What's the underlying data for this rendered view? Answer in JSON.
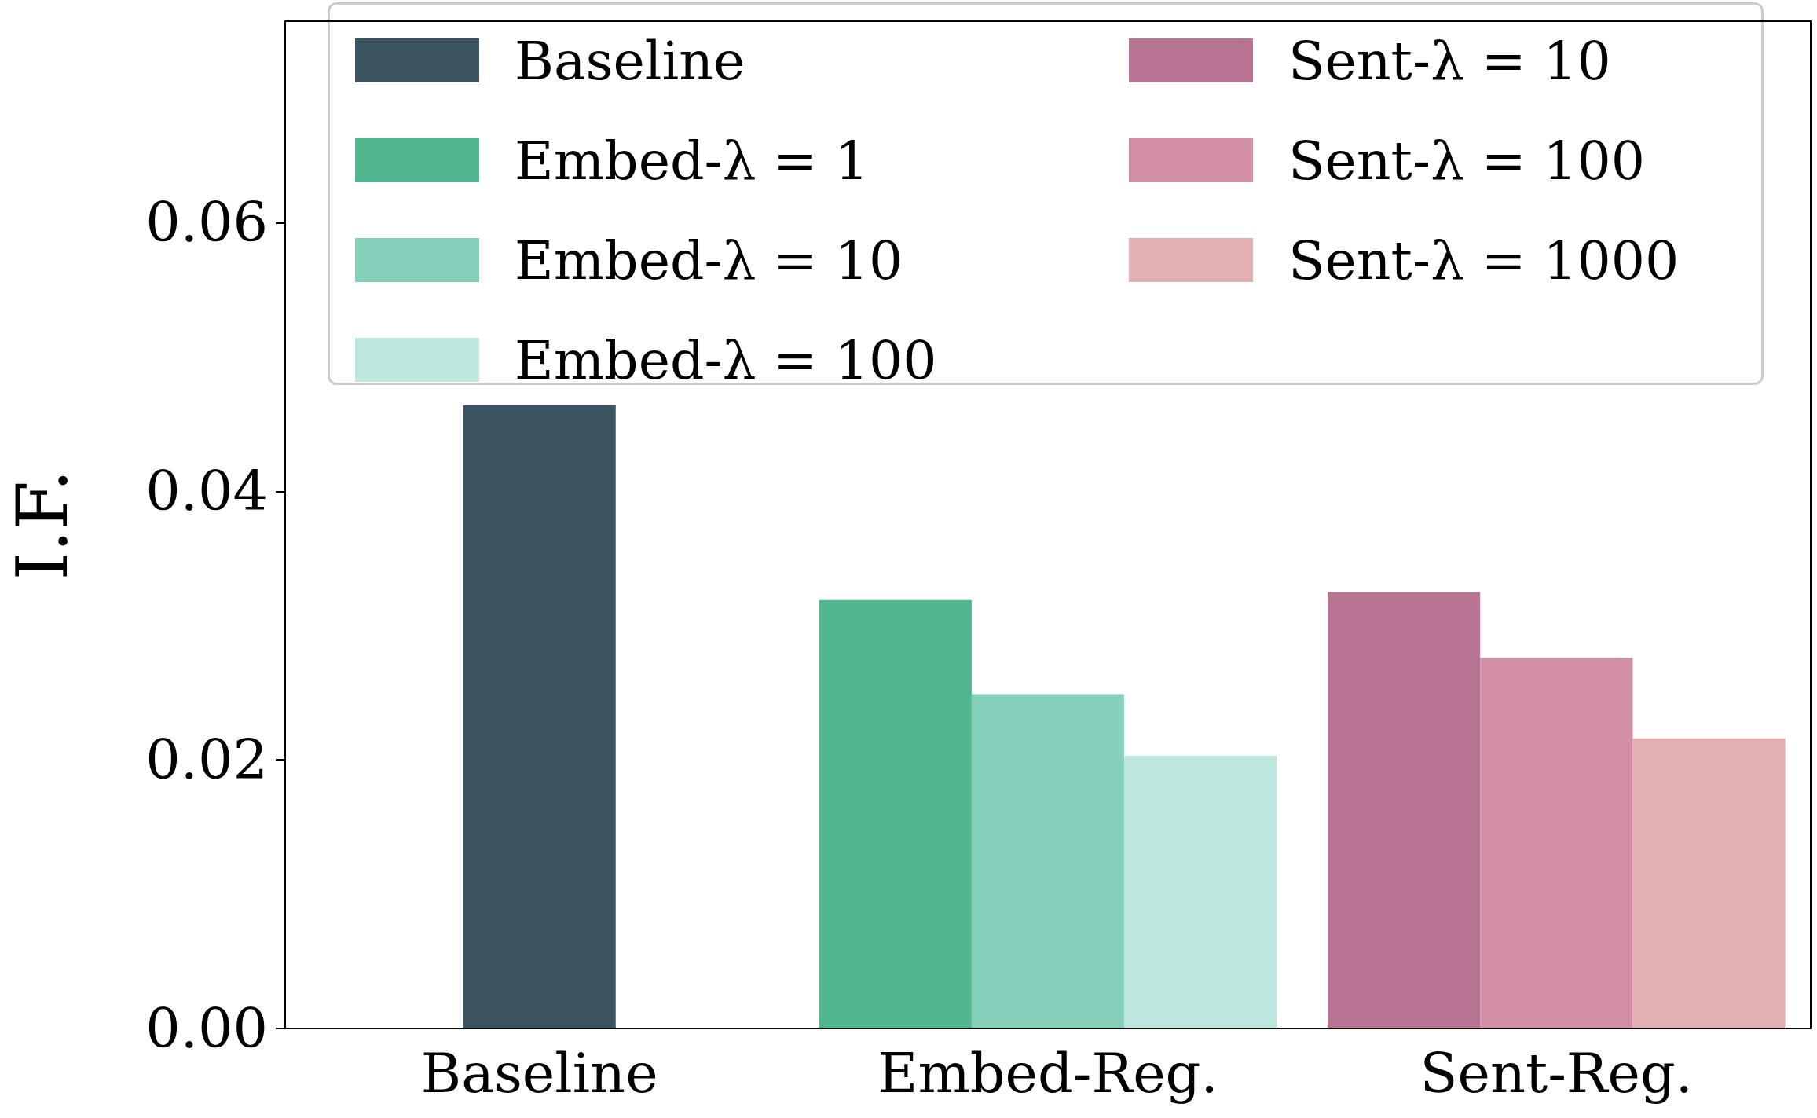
{
  "chart_data": {
    "type": "bar",
    "ylabel": "I.F.",
    "categories": [
      "Baseline",
      "Embed-Reg.",
      "Sent-Reg."
    ],
    "series": [
      {
        "name": "Baseline",
        "color": "#3a5561",
        "values": [
          0.0464,
          null,
          null
        ]
      },
      {
        "name": "Embed-λ = 1",
        "color": "#52b78e",
        "values": [
          null,
          0.0319,
          null
        ]
      },
      {
        "name": "Embed-λ = 10",
        "color": "#85d0ba",
        "values": [
          null,
          0.0249,
          null
        ]
      },
      {
        "name": "Embed-λ = 100",
        "color": "#bde6df",
        "values": [
          null,
          0.0203,
          null
        ]
      },
      {
        "name": "Sent-λ = 10",
        "color": "#b87593",
        "values": [
          null,
          null,
          0.0325
        ]
      },
      {
        "name": "Sent-λ = 100",
        "color": "#d190a3",
        "values": [
          null,
          null,
          0.0276
        ]
      },
      {
        "name": "Sent-λ = 1000",
        "color": "#e2b0b2",
        "values": [
          null,
          null,
          0.0216
        ]
      }
    ],
    "ylim": [
      0,
      0.075
    ],
    "yticks": [
      {
        "value": 0,
        "label": "0.00"
      },
      {
        "value": 0.02,
        "label": "0.02"
      },
      {
        "value": 0.04,
        "label": "0.04"
      },
      {
        "value": 0.06,
        "label": "0.06"
      }
    ],
    "legend": "top",
    "grid": false
  }
}
